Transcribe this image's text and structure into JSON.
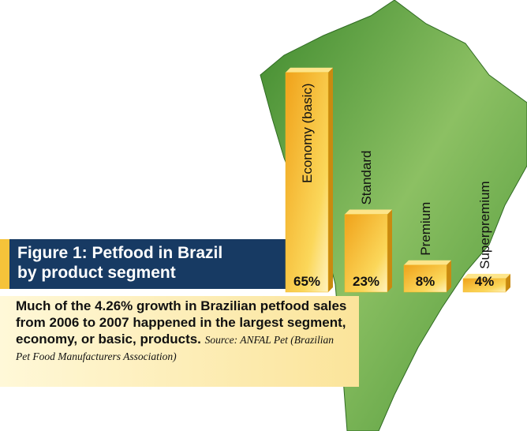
{
  "chart_data": {
    "type": "bar",
    "title": [
      "Figure 1: Petfood in Brazil",
      "by product segment"
    ],
    "categories": [
      "Economy (basic)",
      "Standard",
      "Premium",
      "Superpremium"
    ],
    "values": [
      65,
      23,
      8,
      4
    ],
    "value_labels": [
      "65%",
      "23%",
      "8%",
      "4%"
    ],
    "color": "#f2b824",
    "caption": "Much of the 4.26% growth in Brazilian petfood sales from 2006 to 2007 happened in the largest segment, economy, or basic, products.",
    "source": "Source: ANFAL Pet (Brazilian Pet Food Manufacturers Association)"
  }
}
